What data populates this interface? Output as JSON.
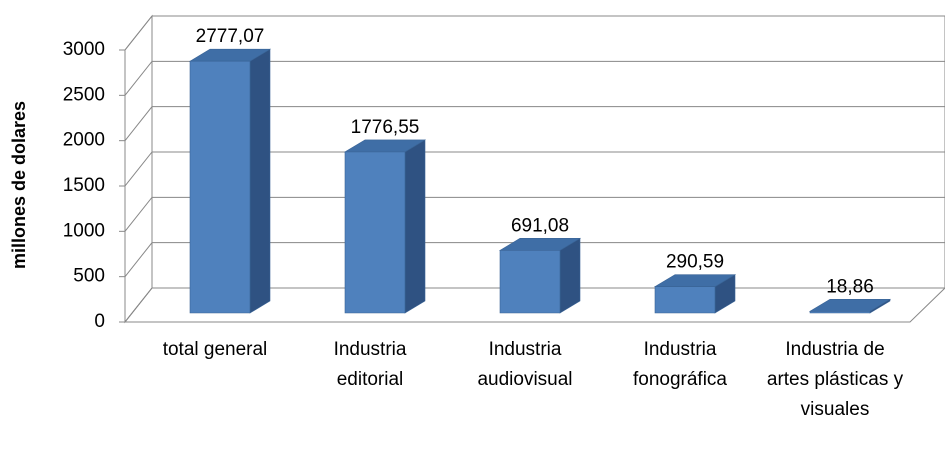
{
  "chart_data": {
    "type": "bar3d",
    "y_label": "millones de dolares",
    "categories": [
      "total general",
      "Industria editorial",
      "Industria audiovisual",
      "Industria fonográfica",
      "Industria de artes plásticas y visuales"
    ],
    "values": [
      2777.07,
      1776.55,
      691.08,
      290.59,
      18.86
    ],
    "value_labels": [
      "2777,07",
      "1776,55",
      "691,08",
      "290,59",
      "18,86"
    ],
    "color": "#4f81bd",
    "ylim": [
      0,
      3000
    ],
    "yticks": [
      0,
      500,
      1000,
      1500,
      2000,
      2500,
      3000
    ],
    "grid": true
  }
}
